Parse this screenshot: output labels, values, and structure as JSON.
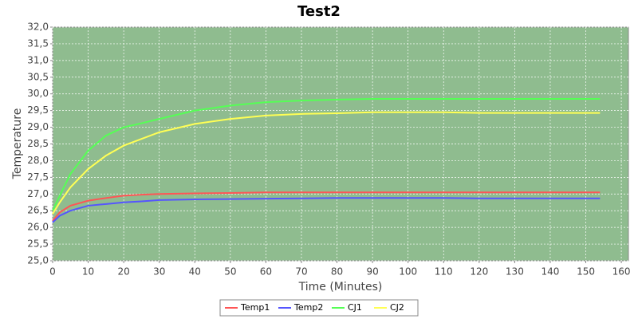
{
  "chart_data": {
    "type": "line",
    "title": "Test2",
    "x_label": "Time (Minutes)",
    "y_label": "Temperature",
    "x": [
      0,
      2,
      5,
      10,
      15,
      20,
      25,
      30,
      40,
      50,
      60,
      70,
      80,
      90,
      100,
      110,
      120,
      130,
      140,
      154
    ],
    "series": [
      {
        "name": "Temp1",
        "color": "#ff5555",
        "values": [
          26.2,
          26.45,
          26.65,
          26.8,
          26.88,
          26.95,
          26.98,
          27.0,
          27.02,
          27.03,
          27.05,
          27.05,
          27.05,
          27.05,
          27.05,
          27.05,
          27.05,
          27.05,
          27.05,
          27.05
        ]
      },
      {
        "name": "Temp2",
        "color": "#5555ff",
        "values": [
          26.15,
          26.35,
          26.5,
          26.65,
          26.7,
          26.75,
          26.78,
          26.82,
          26.84,
          26.85,
          26.86,
          26.87,
          26.88,
          26.88,
          26.88,
          26.88,
          26.87,
          26.87,
          26.87,
          26.87
        ]
      },
      {
        "name": "CJ1",
        "color": "#55ff55",
        "values": [
          26.5,
          26.95,
          27.6,
          28.3,
          28.75,
          29.0,
          29.12,
          29.25,
          29.5,
          29.65,
          29.75,
          29.8,
          29.83,
          29.85,
          29.85,
          29.85,
          29.85,
          29.85,
          29.85,
          29.85
        ]
      },
      {
        "name": "CJ2",
        "color": "#ffff55",
        "values": [
          26.4,
          26.75,
          27.2,
          27.75,
          28.15,
          28.45,
          28.65,
          28.85,
          29.1,
          29.25,
          29.35,
          29.4,
          29.42,
          29.45,
          29.45,
          29.45,
          29.43,
          29.43,
          29.43,
          29.43
        ]
      }
    ],
    "xlim": [
      0,
      162
    ],
    "ylim": [
      25,
      32
    ],
    "xticks": [
      0,
      10,
      20,
      30,
      40,
      50,
      60,
      70,
      80,
      90,
      100,
      110,
      120,
      130,
      140,
      150,
      160
    ],
    "yticks": [
      {
        "value": 25,
        "label": "25,0"
      },
      {
        "value": 25.5,
        "label": "25,5"
      },
      {
        "value": 26,
        "label": "26,0"
      },
      {
        "value": 26.5,
        "label": "26,5"
      },
      {
        "value": 27,
        "label": "27,0"
      },
      {
        "value": 27.5,
        "label": "27,5"
      },
      {
        "value": 28,
        "label": "28,0"
      },
      {
        "value": 28.5,
        "label": "28,5"
      },
      {
        "value": 29,
        "label": "29,0"
      },
      {
        "value": 29.5,
        "label": "29,5"
      },
      {
        "value": 30,
        "label": "30,0"
      },
      {
        "value": 30.5,
        "label": "30,5"
      },
      {
        "value": 31,
        "label": "31,0"
      },
      {
        "value": 31.5,
        "label": "31,5"
      },
      {
        "value": 32,
        "label": "32,0"
      }
    ],
    "grid": true,
    "legend_position": "bottom"
  }
}
